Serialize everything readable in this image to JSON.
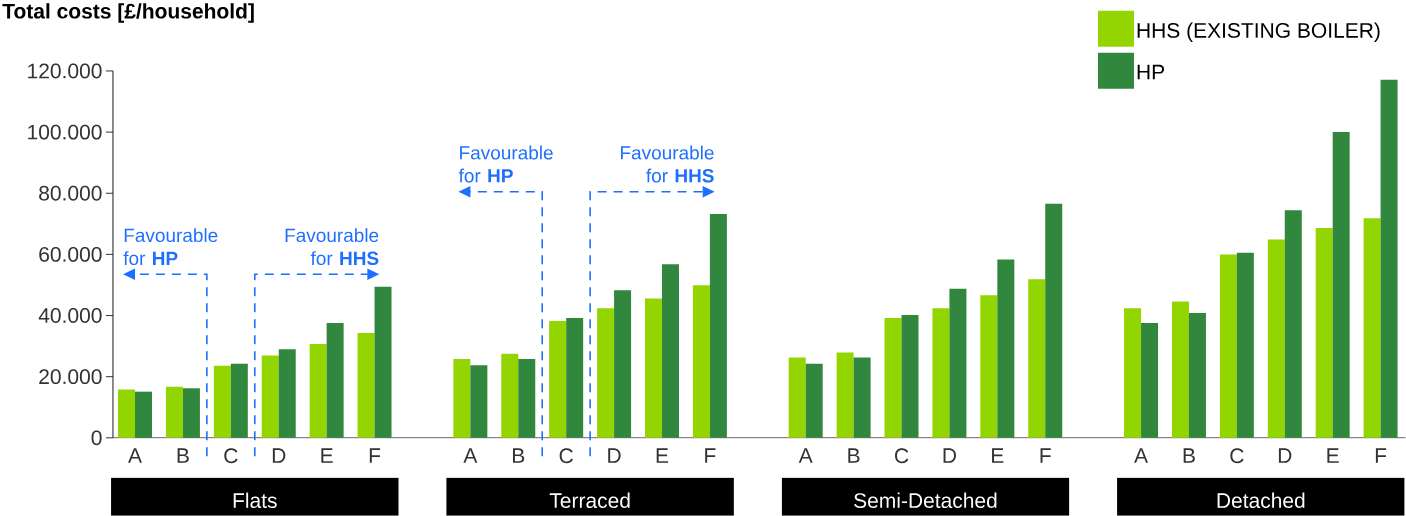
{
  "chart_data": {
    "type": "bar",
    "title": "Total costs [£/household]",
    "categories": [
      "A",
      "B",
      "C",
      "D",
      "E",
      "F",
      null,
      "A",
      "B",
      "C",
      "D",
      "E",
      "F",
      null,
      "A",
      "B",
      "C",
      "D",
      "E",
      "F",
      null,
      "A",
      "B",
      "C",
      "D",
      "E",
      "F"
    ],
    "series": [
      {
        "name": "HHS (EXISTING BOILER)",
        "color": "#93d500",
        "values": [
          15800,
          16700,
          23600,
          26900,
          30700,
          34300,
          null,
          25800,
          27500,
          38200,
          42400,
          45600,
          49900,
          null,
          26300,
          27900,
          39200,
          42400,
          46600,
          51900,
          null,
          42400,
          44600,
          60000,
          64900,
          68600,
          71800
        ]
      },
      {
        "name": "HP",
        "color": "#31873e",
        "values": [
          15100,
          16200,
          24200,
          29000,
          37600,
          49400,
          null,
          23700,
          25800,
          39200,
          48300,
          56800,
          73200,
          null,
          24200,
          26300,
          40200,
          48800,
          58300,
          76600,
          null,
          37600,
          40800,
          60500,
          74400,
          100000,
          117100
        ]
      }
    ],
    "ylim": [
      0,
      120000
    ],
    "yticks": [
      {
        "value": 0,
        "label": "0"
      },
      {
        "value": 20000,
        "label": "20.000"
      },
      {
        "value": 40000,
        "label": "40.000"
      },
      {
        "value": 60000,
        "label": "60.000"
      },
      {
        "value": 80000,
        "label": "80.000"
      },
      {
        "value": 100000,
        "label": "100.000"
      },
      {
        "value": 120000,
        "label": "120.000"
      }
    ],
    "legend": "top right",
    "annotations": [
      "Flats",
      "Terraced",
      "Semi-Detached",
      "Detached",
      "Favourable for **HP**",
      "Favourable for **HHS**",
      "Favourable for **HP**",
      "Favourable for **HHS**"
    ]
  }
}
